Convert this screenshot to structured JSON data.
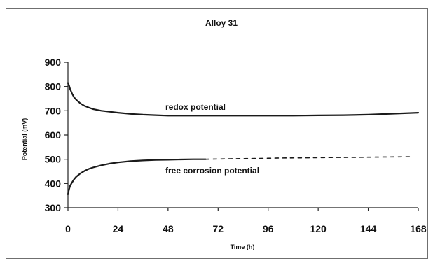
{
  "chart_data": {
    "type": "line",
    "title": "Alloy 31",
    "xlabel": "Time (h)",
    "ylabel": "Potential (mV)",
    "xlim": [
      0,
      168
    ],
    "ylim": [
      300,
      900
    ],
    "xticks": [
      "0",
      "24",
      "48",
      "72",
      "96",
      "120",
      "144",
      "168"
    ],
    "yticks": [
      "300",
      "400",
      "500",
      "600",
      "700",
      "800",
      "900"
    ],
    "grid": false,
    "legend": "none",
    "annotations": [
      "redox potential",
      "free corrosion potential"
    ],
    "series": [
      {
        "style": "solid",
        "x": [
          0,
          0.5,
          1,
          2,
          3,
          4,
          6,
          8,
          10,
          12,
          16,
          20,
          24,
          30,
          36,
          42,
          48,
          60,
          72,
          84,
          96,
          108,
          120,
          132,
          144,
          156,
          168
        ],
        "y": [
          815,
          805,
          790,
          770,
          755,
          745,
          730,
          720,
          713,
          707,
          700,
          696,
          692,
          687,
          684,
          682,
          680,
          680,
          680,
          680,
          680,
          680,
          681,
          682,
          684,
          688,
          692
        ]
      },
      {
        "style": "solid",
        "x": [
          0,
          0.5,
          1,
          2,
          3,
          4,
          6,
          8,
          10,
          12,
          16,
          20,
          24,
          30,
          36,
          42,
          48,
          54,
          60,
          66
        ],
        "y": [
          355,
          375,
          390,
          405,
          418,
          428,
          442,
          452,
          460,
          466,
          475,
          482,
          487,
          492,
          495,
          497,
          498,
          499,
          500,
          500
        ]
      },
      {
        "style": "dashed",
        "x": [
          66,
          78,
          90,
          102,
          114,
          126,
          138,
          150,
          162,
          164
        ],
        "y": [
          500,
          502,
          503,
          505,
          506,
          507,
          508,
          509,
          510,
          510
        ]
      }
    ],
    "colors": {
      "line": "#1a1a1a",
      "axis": "#222222"
    }
  }
}
